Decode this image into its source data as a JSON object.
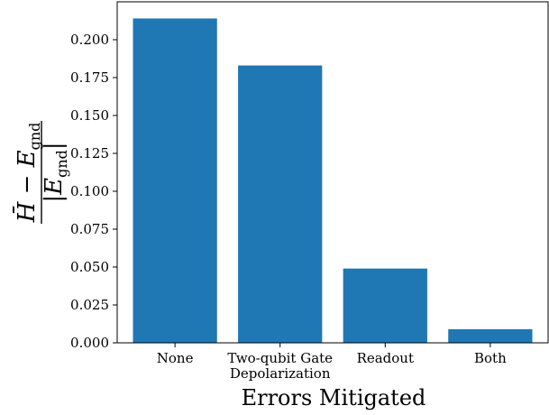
{
  "chart_data": {
    "type": "bar",
    "categories": [
      [
        "None"
      ],
      [
        "Two-qubit Gate",
        "Depolarization"
      ],
      [
        "Readout"
      ],
      [
        "Both"
      ]
    ],
    "values": [
      0.214,
      0.183,
      0.049,
      0.009
    ],
    "xlabel": "Errors Mitigated",
    "ylabel": {
      "numerator": "H̄ − E",
      "numerator_sub": "gnd",
      "denominator": "|E",
      "denominator_sub": "gnd",
      "denominator_close": "|"
    },
    "yticks": [
      "0.000",
      "0.025",
      "0.050",
      "0.075",
      "0.100",
      "0.125",
      "0.150",
      "0.175",
      "0.200"
    ],
    "ylim": [
      0,
      0.225
    ],
    "bar_color": "#1f77b4",
    "grid": false,
    "legend": false
  }
}
